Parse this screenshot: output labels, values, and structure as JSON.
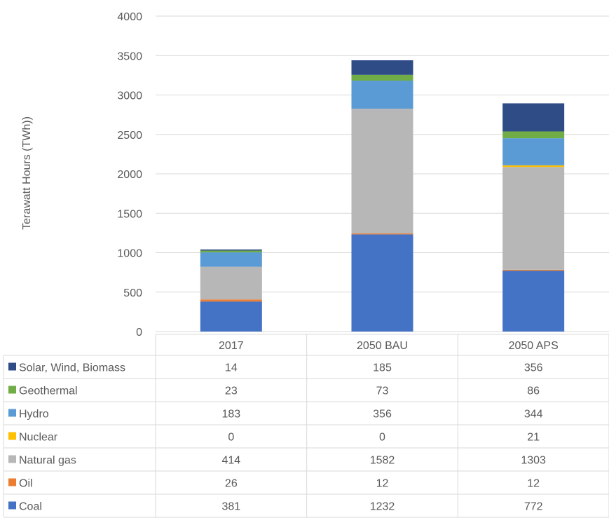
{
  "chart_data": {
    "type": "bar",
    "stacked": true,
    "ylabel": "Terawatt  Hours (TWh))",
    "ylim": [
      0,
      4000
    ],
    "yticks": [
      0,
      500,
      1000,
      1500,
      2000,
      2500,
      3000,
      3500,
      4000
    ],
    "grid": true,
    "legend": "data-table",
    "categories": [
      "2017",
      "2050 BAU",
      "2050 APS"
    ],
    "series": [
      {
        "name": "Coal",
        "color": "#4472C4",
        "values": [
          381,
          1232,
          772
        ]
      },
      {
        "name": "Oil",
        "color": "#ED7D31",
        "values": [
          26,
          12,
          12
        ]
      },
      {
        "name": "Natural gas",
        "color": "#B7B7B7",
        "values": [
          414,
          1582,
          1303
        ]
      },
      {
        "name": "Nuclear",
        "color": "#FFC000",
        "values": [
          0,
          0,
          21
        ]
      },
      {
        "name": "Hydro",
        "color": "#5B9BD5",
        "values": [
          183,
          356,
          344
        ]
      },
      {
        "name": "Geothermal",
        "color": "#70AD47",
        "values": [
          23,
          73,
          86
        ]
      },
      {
        "name": "Solar, Wind, Biomass",
        "color": "#2F4C87",
        "values": [
          14,
          185,
          356
        ]
      }
    ]
  }
}
